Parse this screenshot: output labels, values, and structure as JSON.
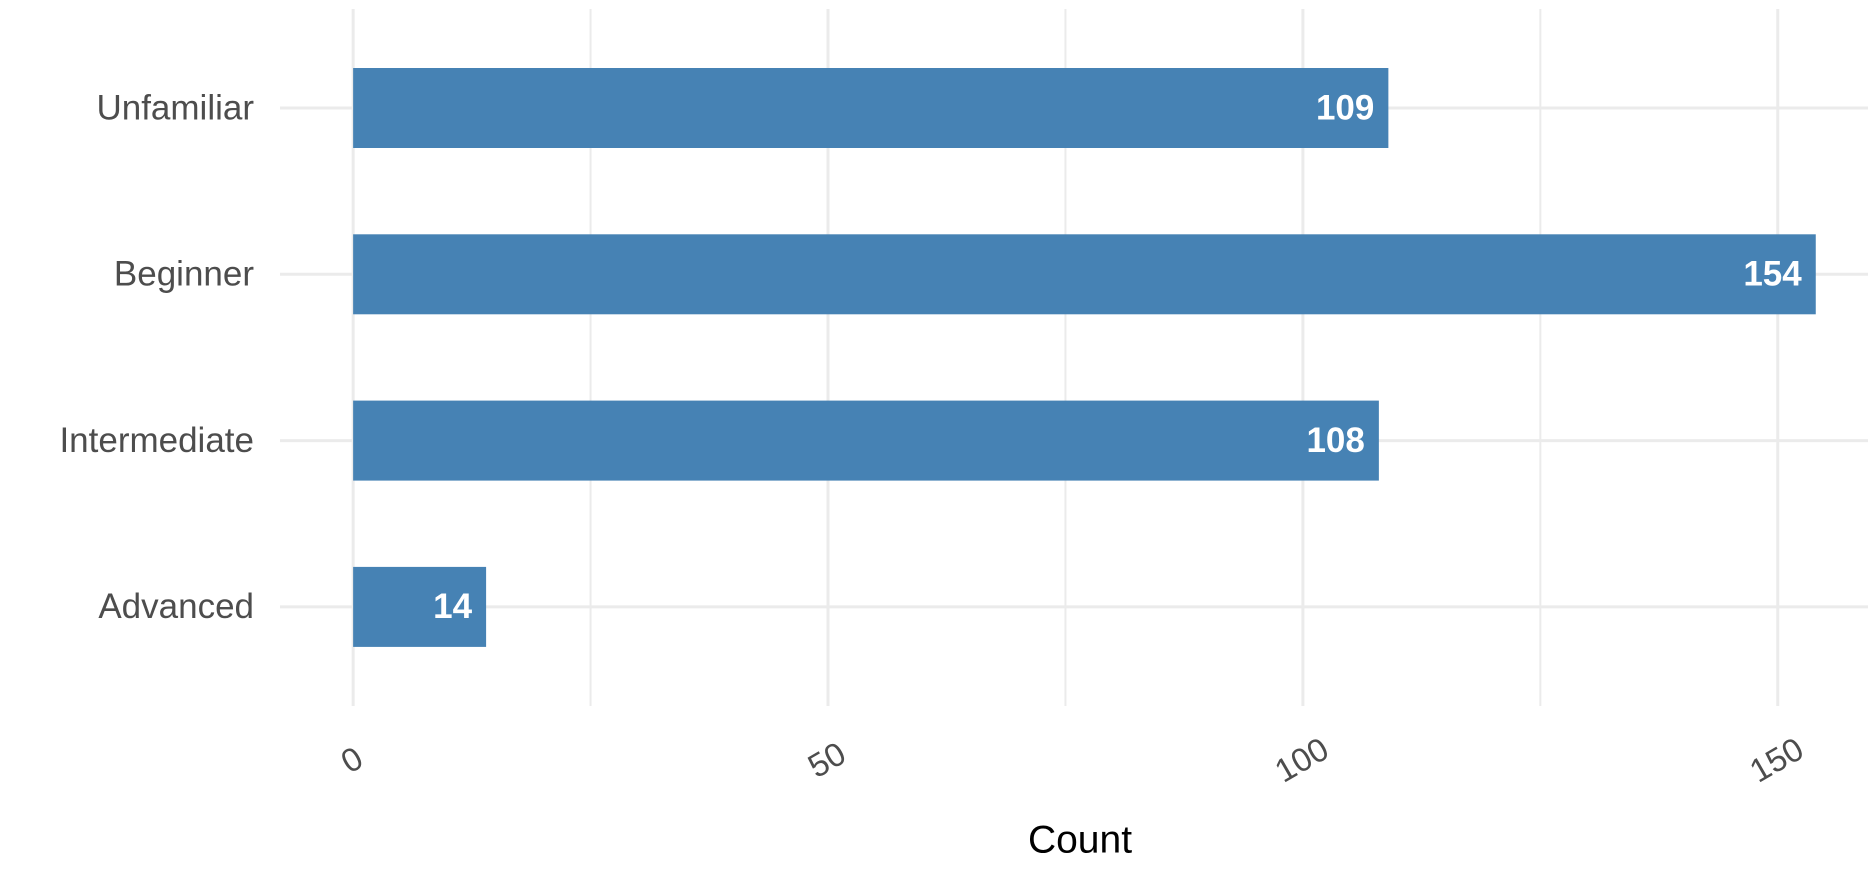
{
  "chart_data": {
    "type": "barh",
    "x_label": "Count",
    "categories": [
      "Unfamiliar",
      "Beginner",
      "Intermediate",
      "Advanced"
    ],
    "values": [
      109,
      154,
      108,
      14
    ],
    "color": "#4682b4",
    "xlim": [
      -7.7,
      159.5
    ],
    "xticks": [
      0,
      50,
      100,
      150
    ],
    "xminor": [
      25,
      75,
      125
    ],
    "grid": true
  }
}
